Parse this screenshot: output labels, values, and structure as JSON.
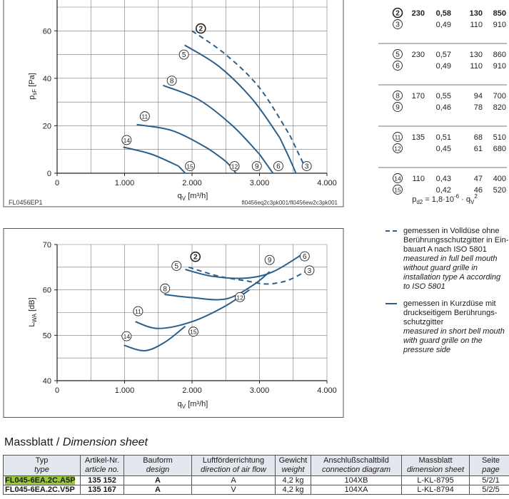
{
  "chart_data": [
    {
      "type": "line",
      "title": "",
      "xlabel": "qV [m³/h]",
      "ylabel": "psF [Pa]",
      "xlim": [
        0,
        4000
      ],
      "ylim": [
        0,
        70
      ],
      "xticks": [
        "0",
        "1.000",
        "2.000",
        "3.000",
        "4.000"
      ],
      "yticks": [
        "0",
        "20",
        "40",
        "60"
      ],
      "grid": true,
      "footer_left": "FL0456EP1",
      "footer_right": "fl0456eq2c3pk001/fl0456ew2c3pk001",
      "series": [
        {
          "label": "2",
          "style": "dashed",
          "x": [
            2000,
            2500,
            3000,
            3450
          ],
          "y": [
            60,
            50,
            36,
            16
          ]
        },
        {
          "label": "3",
          "style": "dashed",
          "x": [
            3450,
            3550,
            3650,
            3710
          ],
          "y": [
            16,
            10,
            4,
            0
          ]
        },
        {
          "label": "5",
          "style": "solid",
          "x": [
            1890,
            2400,
            2900,
            3300
          ],
          "y": [
            54,
            45,
            31,
            15
          ]
        },
        {
          "label": "6",
          "style": "solid",
          "x": [
            3300,
            3400,
            3480,
            3540
          ],
          "y": [
            15,
            9,
            4,
            0
          ]
        },
        {
          "label": "8",
          "style": "solid",
          "x": [
            1570,
            2100,
            2600,
            3000
          ],
          "y": [
            37,
            31,
            20,
            8
          ]
        },
        {
          "label": "9",
          "style": "solid",
          "x": [
            3000,
            3100,
            3200
          ],
          "y": [
            8,
            4,
            0
          ]
        },
        {
          "label": "11",
          "style": "solid",
          "x": [
            1180,
            1700,
            2200,
            2500
          ],
          "y": [
            20.5,
            18,
            11,
            5
          ]
        },
        {
          "label": "12",
          "style": "solid",
          "x": [
            2500,
            2600,
            2650
          ],
          "y": [
            5,
            2,
            0
          ]
        },
        {
          "label": "14",
          "style": "solid",
          "x": [
            980,
            1400,
            1800
          ],
          "y": [
            11,
            8,
            3
          ]
        },
        {
          "label": "15",
          "style": "solid",
          "x": [
            1800,
            1900
          ],
          "y": [
            3,
            0
          ]
        }
      ],
      "markers": [
        {
          "label": "2",
          "x": 2130,
          "y": 61
        },
        {
          "label": "5",
          "x": 1880,
          "y": 50
        },
        {
          "label": "8",
          "x": 1700,
          "y": 39
        },
        {
          "label": "11",
          "x": 1300,
          "y": 24
        },
        {
          "label": "14",
          "x": 1030,
          "y": 14
        },
        {
          "label": "15",
          "x": 1970,
          "y": 3
        },
        {
          "label": "12",
          "x": 2630,
          "y": 3
        },
        {
          "label": "9",
          "x": 2960,
          "y": 3
        },
        {
          "label": "6",
          "x": 3280,
          "y": 3
        },
        {
          "label": "3",
          "x": 3700,
          "y": 3
        }
      ]
    },
    {
      "type": "line",
      "title": "",
      "xlabel": "qV [m³/h]",
      "ylabel": "LWA [dB]",
      "xlim": [
        0,
        4000
      ],
      "ylim": [
        40,
        70
      ],
      "xticks": [
        "0",
        "1.000",
        "2.000",
        "3.000",
        "4.000"
      ],
      "yticks": [
        "40",
        "50",
        "60",
        "70"
      ],
      "grid": true,
      "series": [
        {
          "label": "2-3",
          "style": "dashed",
          "x": [
            1950,
            2400,
            2800,
            3100,
            3400,
            3680
          ],
          "y": [
            65,
            63,
            62,
            61.3,
            62,
            64
          ]
        },
        {
          "label": "5-6",
          "style": "solid",
          "x": [
            1900,
            2300,
            2800,
            3200,
            3650
          ],
          "y": [
            64.5,
            63,
            62.6,
            64,
            68
          ]
        },
        {
          "label": "8-9",
          "style": "solid",
          "x": [
            1590,
            2000,
            2500,
            2900,
            3150
          ],
          "y": [
            59,
            58.3,
            58,
            61,
            64
          ]
        },
        {
          "label": "11-12",
          "style": "solid",
          "x": [
            1160,
            1500,
            2000,
            2500,
            2850
          ],
          "y": [
            53,
            51.5,
            53,
            56.5,
            60
          ]
        },
        {
          "label": "14-15",
          "style": "solid",
          "x": [
            990,
            1300,
            1600,
            1900
          ],
          "y": [
            47.8,
            46.6,
            48.5,
            52
          ]
        }
      ],
      "markers": [
        {
          "label": "2",
          "x": 2050,
          "y": 67.3
        },
        {
          "label": "5",
          "x": 1770,
          "y": 65.3
        },
        {
          "label": "8",
          "x": 1600,
          "y": 60.3
        },
        {
          "label": "11",
          "x": 1200,
          "y": 55.3
        },
        {
          "label": "14",
          "x": 1030,
          "y": 49.8
        },
        {
          "label": "15",
          "x": 2020,
          "y": 50.8
        },
        {
          "label": "12",
          "x": 2710,
          "y": 58.4
        },
        {
          "label": "9",
          "x": 3150,
          "y": 66.6
        },
        {
          "label": "6",
          "x": 3670,
          "y": 67.4
        },
        {
          "label": "3",
          "x": 3740,
          "y": 64.3
        }
      ]
    }
  ],
  "operating_points": [
    {
      "curves": [
        "2",
        "3"
      ],
      "rows": [
        [
          "230",
          "0,58",
          "130",
          "850"
        ],
        [
          "",
          "0,49",
          "110",
          "910"
        ]
      ]
    },
    {
      "curves": [
        "5",
        "6"
      ],
      "rows": [
        [
          "230",
          "0,57",
          "130",
          "860"
        ],
        [
          "",
          "0,49",
          "110",
          "910"
        ]
      ]
    },
    {
      "curves": [
        "8",
        "9"
      ],
      "rows": [
        [
          "170",
          "0,55",
          "94",
          "700"
        ],
        [
          "",
          "0,46",
          "78",
          "820"
        ]
      ]
    },
    {
      "curves": [
        "11",
        "12"
      ],
      "rows": [
        [
          "135",
          "0,51",
          "68",
          "510"
        ],
        [
          "",
          "0,45",
          "61",
          "680"
        ]
      ]
    },
    {
      "curves": [
        "14",
        "15"
      ],
      "rows": [
        [
          "110",
          "0,43",
          "47",
          "400"
        ],
        [
          "",
          "0,42",
          "46",
          "520"
        ]
      ]
    }
  ],
  "formula": {
    "lhs": "p",
    "lhs_sub": "d2",
    "rhs": " = 1,8·10",
    "exp": "-6",
    "tail": " · q",
    "tail_sub": "V",
    "tail_sup": "2"
  },
  "legend": [
    {
      "style": "dashed",
      "lines": [
        "gemessen in Volldüse ohne",
        "Berührungsschutzgitter in Ein-",
        "bauart A nach ISO 5801"
      ],
      "italic": [
        "measured in full bell mouth",
        "without guard grille in",
        "installation type A according",
        "to ISO 5801"
      ]
    },
    {
      "style": "solid",
      "lines": [
        "gemessen in Kurzdüse mit",
        "druckseitigem Berührungs-",
        "schutzgitter"
      ],
      "italic": [
        "measured in short bell mouth",
        "with guard grille on the",
        "pressure side"
      ]
    }
  ],
  "sheet_title": {
    "de": "Massblatt / ",
    "en": "Dimension sheet"
  },
  "table": {
    "headers": [
      {
        "de": "Typ",
        "en": "type"
      },
      {
        "de": "Artikel-Nr.",
        "en": "article no."
      },
      {
        "de": "Bauform",
        "en": "design"
      },
      {
        "de": "Luftförderrichtung",
        "en": "direction of air flow"
      },
      {
        "de": "Gewicht",
        "en": "weight"
      },
      {
        "de": "Anschlußschaltbild",
        "en": "connection diagram"
      },
      {
        "de": "Massblatt",
        "en": "dimension sheet"
      },
      {
        "de": "Seite",
        "en": "page"
      }
    ],
    "rows": [
      [
        "FL045-6EA.2C.A5P",
        "135 152",
        "A",
        "A",
        "4,2 kg",
        "104XB",
        "L-KL-8795",
        "5/2/1"
      ],
      [
        "FL045-6EA.2C.V5P",
        "135 167",
        "A",
        "V",
        "4,2 kg",
        "104XA",
        "L-KL-8794",
        "5/2/5"
      ]
    ],
    "highlight_color": "#9bc93c"
  },
  "colors": {
    "curve": "#2c5f8a",
    "header_bg": "#e4e7ee"
  }
}
